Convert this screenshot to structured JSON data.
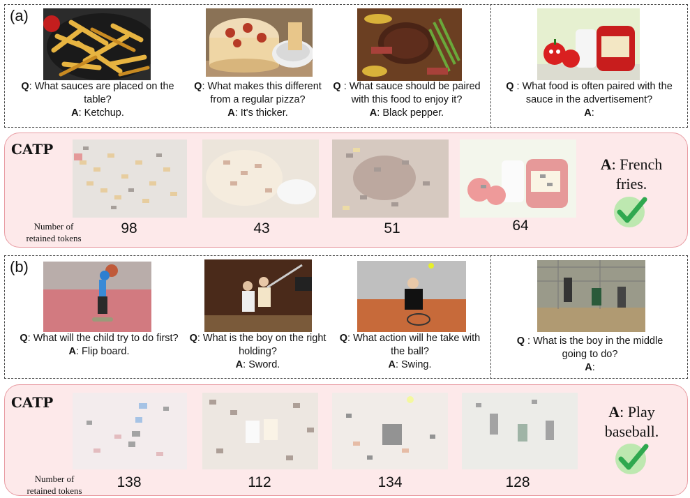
{
  "panel_a": {
    "label": "(a)",
    "examples": [
      {
        "q_prefix": "Q",
        "q_text": ":  What sauces are placed on the table?",
        "a_prefix": "A",
        "a_text": ": Ketchup."
      },
      {
        "q_prefix": "Q",
        "q_text": ": What makes this different from a regular pizza?",
        "a_prefix": "A",
        "a_text": ": It's thicker."
      },
      {
        "q_prefix": "Q",
        "q_text": " : What sauce should be paired with this food to enjoy it?",
        "a_prefix": "A",
        "a_text": ": Black pepper."
      },
      {
        "q_prefix": "Q",
        "q_text": " : What food is often paired with the sauce in the advertisement?",
        "a_prefix": "A",
        "a_text": ":"
      }
    ],
    "catp": {
      "title": "CATP",
      "retained_label_1": "Number of",
      "retained_label_2": "retained tokens",
      "counts": [
        "98",
        "43",
        "51",
        "64"
      ],
      "answer_prefix": "A",
      "answer_line1": ": French",
      "answer_line2": "fries."
    }
  },
  "panel_b": {
    "label": "(b)",
    "examples": [
      {
        "q_prefix": "Q",
        "q_text": ": What will the child try to do first?",
        "a_prefix": "A",
        "a_text": ": Flip board."
      },
      {
        "q_prefix": "Q",
        "q_text": ": What is the boy on the right holding?",
        "a_prefix": "A",
        "a_text": ": Sword."
      },
      {
        "q_prefix": "Q",
        "q_text": ": What action will he take with the ball?",
        "a_prefix": "A",
        "a_text": ": Swing."
      },
      {
        "q_prefix": "Q",
        "q_text": " : What is the boy in the middle going to do?",
        "a_prefix": "A",
        "a_text": ":"
      }
    ],
    "catp": {
      "title": "CATP",
      "retained_label_1": "Number of",
      "retained_label_2": "retained tokens",
      "counts": [
        "138",
        "112",
        "134",
        "128"
      ],
      "answer_prefix": "A",
      "answer_line1": ": Play",
      "answer_line2": "baseball."
    }
  },
  "colors": {
    "catp_bg": "#fde9ea",
    "catp_border": "#e89aa1",
    "check_green": "#2fa84f",
    "check_circle": "#bde8b0"
  },
  "icons": [
    "checkmark-icon"
  ]
}
